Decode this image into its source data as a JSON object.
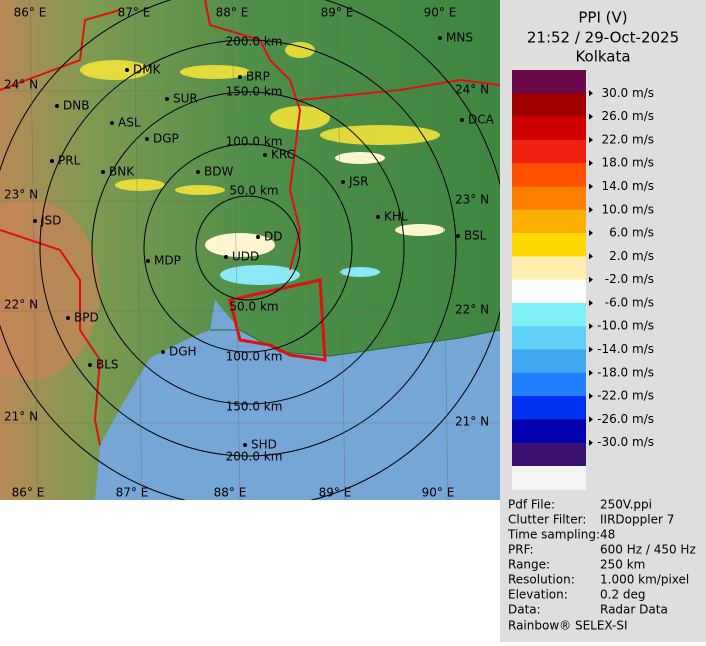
{
  "radar": {
    "title": "PPI (V)",
    "datetime": "21:52 / 29-Oct-2025",
    "station": "Kolkata"
  },
  "map": {
    "longitude_labels": [
      "86° E",
      "87° E",
      "88° E",
      "89° E",
      "90° E"
    ],
    "latitude_labels": [
      "24° N",
      "23° N",
      "22° N",
      "21° N"
    ],
    "range_labels": [
      "50.0 km",
      "100.0 km",
      "150.0 km",
      "200.0 km"
    ],
    "places": [
      "MNS",
      "DMK",
      "BRP",
      "SUR",
      "DNB",
      "ASL",
      "DGP",
      "DCA",
      "PRL",
      "KRC",
      "BNK",
      "BDW",
      "JSR",
      "KHL",
      "JSD",
      "DD",
      "BSL",
      "MDP",
      "UDD",
      "BPD",
      "DGH",
      "BLS",
      "SHD"
    ]
  },
  "legend": {
    "labels": [
      "30.0 m/s",
      "26.0 m/s",
      "22.0 m/s",
      "18.0 m/s",
      "14.0 m/s",
      "10.0 m/s",
      "6.0 m/s",
      "2.0 m/s",
      "-2.0 m/s",
      "-6.0 m/s",
      "-10.0 m/s",
      "-14.0 m/s",
      "-18.0 m/s",
      "-22.0 m/s",
      "-26.0 m/s",
      "-30.0 m/s"
    ],
    "colors": [
      "#6a0a4a",
      "#a00000",
      "#d00000",
      "#f02010",
      "#ff5000",
      "#ff8000",
      "#ffb000",
      "#ffd800",
      "#fff0b0",
      "#ffffff",
      "#80f0f8",
      "#60d0f8",
      "#40a8f0",
      "#2080ff",
      "#0030f0",
      "#0000b0",
      "#3a1070"
    ]
  },
  "info": {
    "rows": [
      [
        "Pdf File:",
        "250V.ppi"
      ],
      [
        "Clutter Filter:",
        "IIRDoppler 7"
      ],
      [
        "Time sampling:",
        "48"
      ],
      [
        "PRF:",
        "600 Hz / 450 Hz"
      ],
      [
        "Range:",
        "250 km"
      ],
      [
        "Resolution:",
        "1.000 km/pixel"
      ],
      [
        "Elevation:",
        "0.2 deg"
      ],
      [
        "Data:",
        "Radar Data"
      ]
    ]
  },
  "footer": "Rainbow® SELEX-SI"
}
